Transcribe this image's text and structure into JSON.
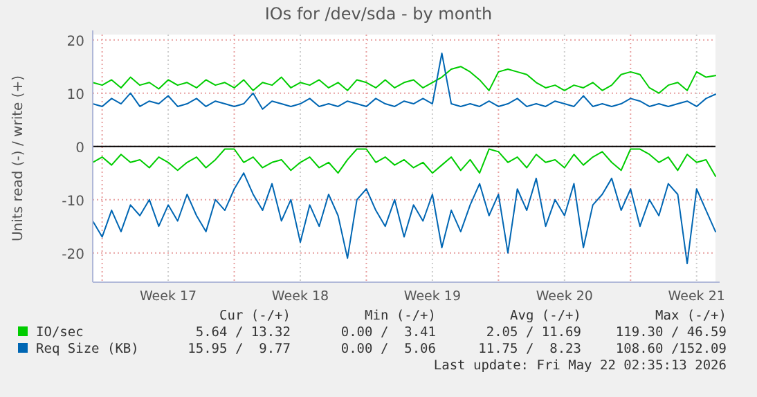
{
  "chart_data": {
    "type": "line",
    "title": "IOs for /dev/sda - by month",
    "ylabel": "Units read (-) / write (+)",
    "x": [
      "2026-04-19T12:00",
      "2026-04-20T00:00",
      "2026-04-20T12:00",
      "2026-04-21T00:00",
      "2026-04-21T12:00",
      "2026-04-22T00:00",
      "2026-04-22T12:00",
      "2026-04-23T00:00",
      "2026-04-23T12:00",
      "2026-04-24T00:00",
      "2026-04-24T12:00",
      "2026-04-25T00:00",
      "2026-04-25T12:00",
      "2026-04-26T00:00",
      "2026-04-26T12:00",
      "2026-04-27T00:00",
      "2026-04-27T12:00",
      "2026-04-28T00:00",
      "2026-04-28T12:00",
      "2026-04-29T00:00",
      "2026-04-29T12:00",
      "2026-04-30T00:00",
      "2026-04-30T12:00",
      "2026-05-01T00:00",
      "2026-05-01T12:00",
      "2026-05-02T00:00",
      "2026-05-02T12:00",
      "2026-05-03T00:00",
      "2026-05-03T12:00",
      "2026-05-04T00:00",
      "2026-05-04T12:00",
      "2026-05-05T00:00",
      "2026-05-05T12:00",
      "2026-05-06T00:00",
      "2026-05-06T12:00",
      "2026-05-07T00:00",
      "2026-05-07T12:00",
      "2026-05-08T00:00",
      "2026-05-08T12:00",
      "2026-05-09T00:00",
      "2026-05-09T12:00",
      "2026-05-10T00:00",
      "2026-05-10T12:00",
      "2026-05-11T00:00",
      "2026-05-11T12:00",
      "2026-05-12T00:00",
      "2026-05-12T12:00",
      "2026-05-13T00:00",
      "2026-05-13T12:00",
      "2026-05-14T00:00",
      "2026-05-14T12:00",
      "2026-05-15T00:00",
      "2026-05-15T12:00",
      "2026-05-16T00:00",
      "2026-05-16T12:00",
      "2026-05-17T00:00",
      "2026-05-17T12:00",
      "2026-05-18T00:00",
      "2026-05-18T12:00",
      "2026-05-19T00:00",
      "2026-05-19T12:00",
      "2026-05-20T00:00",
      "2026-05-20T12:00",
      "2026-05-21T00:00",
      "2026-05-21T12:00",
      "2026-05-22T00:00",
      "2026-05-22T12:00"
    ],
    "series": [
      {
        "name": "IO/sec",
        "color": "#00cc00",
        "values": [
          12,
          11.5,
          12.5,
          11,
          13,
          11.5,
          12,
          10.8,
          12.5,
          11.5,
          12,
          11,
          12.5,
          11.5,
          12,
          11,
          12.5,
          10.5,
          12,
          11.5,
          13,
          11,
          12,
          11.5,
          12.5,
          11,
          12,
          10.5,
          12.5,
          12,
          11,
          12.5,
          11,
          12,
          12.5,
          11,
          12,
          13,
          14.5,
          15,
          14,
          12.5,
          10.5,
          14,
          14.5,
          14,
          13.5,
          12,
          11,
          11.5,
          10.5,
          11.5,
          11,
          12,
          10.5,
          11.5,
          13.5,
          14,
          13.5,
          11,
          10,
          11.5,
          12,
          10.5,
          14,
          13,
          13.3
        ]
      },
      {
        "name": "Req Size (KB)",
        "color": "#0066b3",
        "values": [
          8,
          7.5,
          9,
          8,
          10,
          7.5,
          8.5,
          8,
          9.5,
          7.5,
          8,
          9,
          7.5,
          8.5,
          8,
          7.5,
          8,
          10,
          7,
          8.5,
          8,
          7.5,
          8,
          9,
          7.5,
          8,
          7.5,
          8.5,
          8,
          7.5,
          9,
          8,
          7.5,
          8.5,
          8,
          9,
          8,
          17.5,
          8,
          7.5,
          8,
          7.5,
          8.5,
          7.5,
          8,
          9,
          7.5,
          8,
          7.5,
          8.5,
          8,
          7.5,
          9.5,
          7.5,
          8,
          7.5,
          8,
          9,
          8.5,
          7.5,
          8,
          7.5,
          8,
          8.5,
          7.5,
          9,
          9.8
        ]
      },
      {
        "color": "#00cc00",
        "values": [
          -3,
          -2,
          -3.5,
          -1.5,
          -3,
          -2.5,
          -4,
          -2,
          -3,
          -4.5,
          -3,
          -2,
          -4,
          -2.5,
          -0.5,
          -0.5,
          -3,
          -2,
          -4,
          -3,
          -2.5,
          -4.5,
          -3,
          -2,
          -4,
          -3,
          -5,
          -2.5,
          -0.5,
          -0.5,
          -3,
          -2,
          -3.5,
          -2.5,
          -4,
          -3,
          -5,
          -3.5,
          -2,
          -4.5,
          -2.5,
          -5,
          -0.5,
          -1,
          -3,
          -2,
          -4,
          -1.5,
          -3,
          -2.5,
          -4,
          -1.5,
          -3.5,
          -2,
          -1,
          -3,
          -4.5,
          -0.5,
          -0.5,
          -1.5,
          -3,
          -2,
          -4.5,
          -1.5,
          -3,
          -2.5,
          -5.6
        ]
      },
      {
        "color": "#0066b3",
        "values": [
          -14,
          -17,
          -12,
          -16,
          -11,
          -13,
          -10,
          -15,
          -11,
          -14,
          -9,
          -13,
          -16,
          -10,
          -12,
          -8,
          -5,
          -9,
          -12,
          -7,
          -14,
          -10,
          -18,
          -11,
          -15,
          -9,
          -13,
          -21,
          -10,
          -8,
          -12,
          -15,
          -10,
          -17,
          -11,
          -14,
          -9,
          -19,
          -12,
          -16,
          -11,
          -7,
          -13,
          -9,
          -20,
          -8,
          -12,
          -6,
          -15,
          -10,
          -13,
          -7,
          -19,
          -11,
          -9,
          -6,
          -12,
          -8,
          -15,
          -10,
          -13,
          -7,
          -9,
          -22,
          -8,
          -12,
          -16
        ]
      }
    ],
    "xlim": [
      "2026-04-19T12:00",
      "2026-05-22T12:00"
    ],
    "xticks": [
      {
        "value": "2026-04-20",
        "label": null
      },
      {
        "value": "2026-04-23T12:00",
        "label": "Week 17"
      },
      {
        "value": "2026-04-27",
        "label": null
      },
      {
        "value": "2026-04-30T12:00",
        "label": "Week 18"
      },
      {
        "value": "2026-05-04",
        "label": null
      },
      {
        "value": "2026-05-07T12:00",
        "label": "Week 19"
      },
      {
        "value": "2026-05-11",
        "label": null
      },
      {
        "value": "2026-05-14T12:00",
        "label": "Week 20"
      },
      {
        "value": "2026-05-18",
        "label": null
      },
      {
        "value": "2026-05-21T12:00",
        "label": "Week 21"
      }
    ],
    "ylim": [
      -25.5,
      21
    ],
    "yticks": [
      -20,
      -10,
      0,
      10,
      20
    ],
    "ref_lines": [
      {
        "axis": "y",
        "value": 0,
        "color": "#000000"
      }
    ],
    "grid": true,
    "legend": "bottom",
    "annotations": [
      "Cur (-/+)",
      "Min (-/+)",
      "Avg (-/+)",
      "Max (-/+)",
      "5.64 / 13.32",
      "0.00 /  3.41",
      "2.05 / 11.69",
      "119.30 / 46.59",
      "15.95 /  9.77",
      "0.00 /  5.06",
      "11.75 /  8.23",
      "108.60 /152.09",
      "Last update: Fri May 22 02:35:13 2026"
    ]
  }
}
